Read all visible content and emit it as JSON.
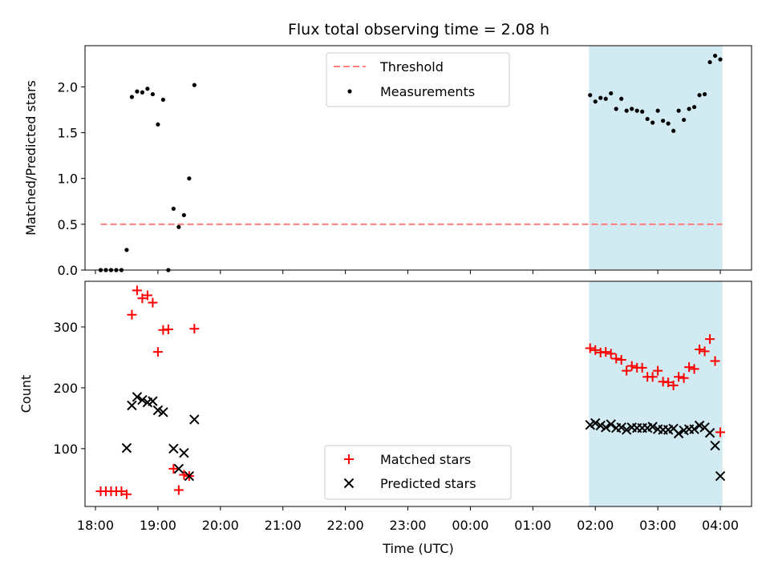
{
  "figure": {
    "title": "Flux total observing time = 2.08 h"
  },
  "chart_data": [
    {
      "type": "scatter",
      "title": "Flux total observing time = 2.08 h",
      "xlabel": "",
      "ylabel": "Matched/Predicted stars",
      "xlim": [
        "17:50",
        "04:30"
      ],
      "ylim": [
        0,
        2.45
      ],
      "yticks": [
        "0.0",
        "0.5",
        "1.0",
        "1.5",
        "2.0"
      ],
      "grid": false,
      "legend_position": "top-center",
      "highlight_span": {
        "start": "01:54",
        "end": "04:02",
        "color": "#add8e6"
      },
      "threshold": {
        "name": "Threshold",
        "y": 0.5,
        "x_start": "18:05",
        "x_end": "04:02",
        "color": "#ff7f7f",
        "style": "dashed"
      },
      "series": [
        {
          "name": "Measurements",
          "marker": "dot",
          "color": "#000000",
          "points": [
            [
              "18:05",
              0.0
            ],
            [
              "18:10",
              0.0
            ],
            [
              "18:15",
              0.0
            ],
            [
              "18:20",
              0.0
            ],
            [
              "18:25",
              0.0
            ],
            [
              "18:30",
              0.22
            ],
            [
              "18:35",
              1.89
            ],
            [
              "18:40",
              1.95
            ],
            [
              "18:45",
              1.94
            ],
            [
              "18:50",
              1.98
            ],
            [
              "18:55",
              1.92
            ],
            [
              "19:00",
              1.59
            ],
            [
              "19:05",
              1.86
            ],
            [
              "19:10",
              0.0
            ],
            [
              "19:15",
              0.67
            ],
            [
              "19:20",
              0.47
            ],
            [
              "19:25",
              0.6
            ],
            [
              "19:30",
              1.0
            ],
            [
              "19:35",
              2.02
            ],
            [
              "01:55",
              1.91
            ],
            [
              "02:00",
              1.84
            ],
            [
              "02:05",
              1.88
            ],
            [
              "02:10",
              1.87
            ],
            [
              "02:15",
              1.93
            ],
            [
              "02:20",
              1.76
            ],
            [
              "02:25",
              1.87
            ],
            [
              "02:30",
              1.74
            ],
            [
              "02:35",
              1.76
            ],
            [
              "02:40",
              1.74
            ],
            [
              "02:45",
              1.73
            ],
            [
              "02:50",
              1.65
            ],
            [
              "02:55",
              1.61
            ],
            [
              "03:00",
              1.74
            ],
            [
              "03:05",
              1.63
            ],
            [
              "03:10",
              1.6
            ],
            [
              "03:15",
              1.52
            ],
            [
              "03:20",
              1.74
            ],
            [
              "03:25",
              1.64
            ],
            [
              "03:30",
              1.76
            ],
            [
              "03:35",
              1.78
            ],
            [
              "03:40",
              1.91
            ],
            [
              "03:45",
              1.92
            ],
            [
              "03:50",
              2.27
            ],
            [
              "03:55",
              2.34
            ],
            [
              "04:00",
              2.3
            ]
          ]
        }
      ]
    },
    {
      "type": "scatter",
      "xlabel": "Time (UTC)",
      "ylabel": "Count",
      "xlim": [
        "17:50",
        "04:30"
      ],
      "xticks": [
        "18:00",
        "19:00",
        "20:00",
        "21:00",
        "22:00",
        "23:00",
        "00:00",
        "01:00",
        "02:00",
        "03:00",
        "04:00"
      ],
      "ylim": [
        5,
        375
      ],
      "yticks": [
        "100",
        "200",
        "300"
      ],
      "grid": false,
      "legend_position": "bottom-center",
      "highlight_span": {
        "start": "01:54",
        "end": "04:02",
        "color": "#add8e6"
      },
      "series": [
        {
          "name": "Matched stars",
          "marker": "plus",
          "color": "#ff0000",
          "points": [
            [
              "18:05",
              30
            ],
            [
              "18:10",
              30
            ],
            [
              "18:15",
              30
            ],
            [
              "18:20",
              30
            ],
            [
              "18:25",
              30
            ],
            [
              "18:30",
              25
            ],
            [
              "18:35",
              320
            ],
            [
              "18:40",
              360
            ],
            [
              "18:45",
              347
            ],
            [
              "18:50",
              352
            ],
            [
              "18:55",
              340
            ],
            [
              "19:00",
              259
            ],
            [
              "19:05",
              295
            ],
            [
              "19:10",
              296
            ],
            [
              "19:15",
              67
            ],
            [
              "19:20",
              32
            ],
            [
              "19:25",
              57
            ],
            [
              "19:30",
              55
            ],
            [
              "19:35",
              297
            ],
            [
              "01:55",
              265
            ],
            [
              "02:00",
              262
            ],
            [
              "02:05",
              258
            ],
            [
              "02:10",
              259
            ],
            [
              "02:15",
              256
            ],
            [
              "02:20",
              248
            ],
            [
              "02:25",
              246
            ],
            [
              "02:30",
              228
            ],
            [
              "02:35",
              236
            ],
            [
              "02:40",
              233
            ],
            [
              "02:45",
              233
            ],
            [
              "02:50",
              218
            ],
            [
              "02:55",
              218
            ],
            [
              "03:00",
              228
            ],
            [
              "03:05",
              210
            ],
            [
              "03:10",
              209
            ],
            [
              "03:15",
              204
            ],
            [
              "03:20",
              218
            ],
            [
              "03:25",
              216
            ],
            [
              "03:30",
              234
            ],
            [
              "03:35",
              231
            ],
            [
              "03:40",
              263
            ],
            [
              "03:45",
              260
            ],
            [
              "03:50",
              280
            ],
            [
              "03:55",
              244
            ],
            [
              "04:00",
              127
            ]
          ]
        },
        {
          "name": "Predicted stars",
          "marker": "x",
          "color": "#000000",
          "points": [
            [
              "18:30",
              101
            ],
            [
              "18:35",
              171
            ],
            [
              "18:40",
              185
            ],
            [
              "18:45",
              180
            ],
            [
              "18:50",
              176
            ],
            [
              "18:55",
              178
            ],
            [
              "19:00",
              163
            ],
            [
              "19:05",
              160
            ],
            [
              "19:15",
              100
            ],
            [
              "19:20",
              67
            ],
            [
              "19:25",
              93
            ],
            [
              "19:30",
              55
            ],
            [
              "19:35",
              148
            ],
            [
              "01:55",
              139
            ],
            [
              "02:00",
              142
            ],
            [
              "02:05",
              138
            ],
            [
              "02:10",
              135
            ],
            [
              "02:15",
              140
            ],
            [
              "02:20",
              134
            ],
            [
              "02:25",
              135
            ],
            [
              "02:30",
              131
            ],
            [
              "02:35",
              135
            ],
            [
              "02:40",
              134
            ],
            [
              "02:45",
              134
            ],
            [
              "02:50",
              134
            ],
            [
              "02:55",
              136
            ],
            [
              "03:00",
              132
            ],
            [
              "03:05",
              131
            ],
            [
              "03:10",
              131
            ],
            [
              "03:15",
              133
            ],
            [
              "03:20",
              125
            ],
            [
              "03:25",
              130
            ],
            [
              "03:30",
              132
            ],
            [
              "03:35",
              132
            ],
            [
              "03:40",
              138
            ],
            [
              "03:45",
              135
            ],
            [
              "03:50",
              126
            ],
            [
              "03:55",
              105
            ],
            [
              "04:00",
              55
            ]
          ]
        }
      ]
    }
  ]
}
